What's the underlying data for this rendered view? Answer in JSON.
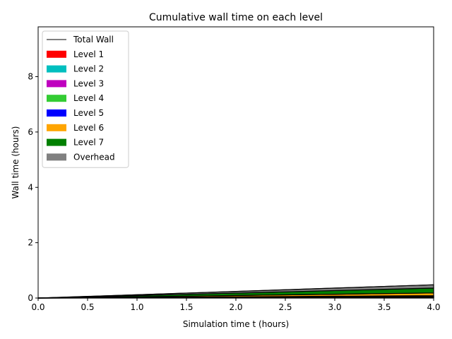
{
  "chart_data": {
    "type": "area",
    "title": "Cumulative wall time on each level",
    "xlabel": "Simulation time t (hours)",
    "ylabel": "Wall time (hours)",
    "xlim": [
      0,
      4.0
    ],
    "ylim": [
      0,
      9.8
    ],
    "xticks": [
      "0.0",
      "0.5",
      "1.0",
      "1.5",
      "2.0",
      "2.5",
      "3.0",
      "3.5",
      "4.0"
    ],
    "yticks": [
      "0",
      "2",
      "4",
      "6",
      "8"
    ],
    "legend_position": "upper-left",
    "grid": false,
    "x": [
      0,
      0.5,
      1.0,
      1.5,
      2.0,
      2.5,
      3.0,
      3.5,
      4.0
    ],
    "series": [
      {
        "name": "Level 1",
        "color": "#ff0000",
        "values": [
          0,
          0.002,
          0.004,
          0.006,
          0.008,
          0.01,
          0.012,
          0.014,
          0.016
        ]
      },
      {
        "name": "Level 2",
        "color": "#00bfbf",
        "values": [
          0,
          0.002,
          0.004,
          0.006,
          0.008,
          0.01,
          0.012,
          0.014,
          0.016
        ]
      },
      {
        "name": "Level 3",
        "color": "#bf00bf",
        "values": [
          0,
          0.002,
          0.004,
          0.006,
          0.008,
          0.01,
          0.012,
          0.014,
          0.016
        ]
      },
      {
        "name": "Level 4",
        "color": "#33cc33",
        "values": [
          0,
          0.002,
          0.004,
          0.006,
          0.008,
          0.01,
          0.012,
          0.014,
          0.016
        ]
      },
      {
        "name": "Level 5",
        "color": "#0000ff",
        "values": [
          0,
          0.003,
          0.006,
          0.009,
          0.012,
          0.015,
          0.018,
          0.021,
          0.024
        ]
      },
      {
        "name": "Level 6",
        "color": "#ffa500",
        "values": [
          0,
          0.012,
          0.024,
          0.036,
          0.048,
          0.06,
          0.072,
          0.084,
          0.096
        ]
      },
      {
        "name": "Level 7",
        "color": "#008000",
        "values": [
          0,
          0.022,
          0.044,
          0.066,
          0.088,
          0.11,
          0.132,
          0.154,
          0.176
        ]
      },
      {
        "name": "Overhead",
        "color": "#808080",
        "values": [
          0,
          0.015,
          0.03,
          0.045,
          0.06,
          0.075,
          0.09,
          0.105,
          0.12
        ]
      }
    ],
    "total_line": {
      "name": "Total Wall",
      "color": "#000000",
      "values": [
        0,
        0.06,
        0.12,
        0.18,
        0.24,
        0.3,
        0.36,
        0.42,
        0.48
      ]
    }
  }
}
